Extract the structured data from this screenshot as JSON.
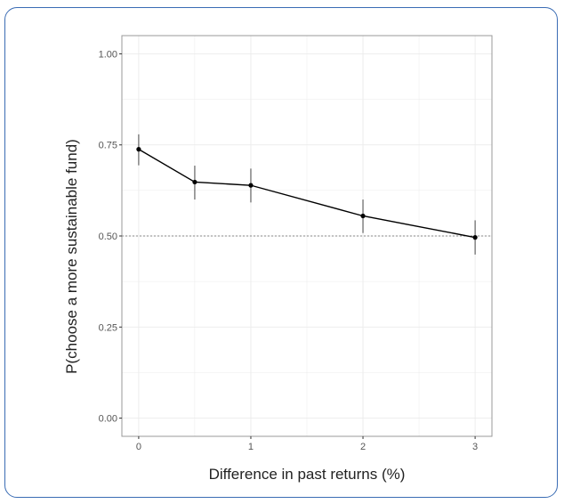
{
  "chart_data": {
    "type": "line",
    "title": "",
    "xlabel": "Difference in past returns (%)",
    "ylabel": "P(choose a more sustainable fund)",
    "xlim": [
      -0.15,
      3.15
    ],
    "ylim": [
      -0.05,
      1.05
    ],
    "x_ticks": [
      "0",
      "1",
      "2",
      "3"
    ],
    "y_ticks": [
      "0.00",
      "0.25",
      "0.50",
      "0.75",
      "1.00"
    ],
    "grid": true,
    "reference_line": {
      "y": 0.5,
      "style": "dotted"
    },
    "series": [
      {
        "x": [
          0,
          0.5,
          1,
          2,
          3
        ],
        "y": [
          0.738,
          0.648,
          0.639,
          0.555,
          0.496
        ],
        "error_low": [
          0.694,
          0.6,
          0.592,
          0.508,
          0.449
        ],
        "error_high": [
          0.779,
          0.693,
          0.685,
          0.6,
          0.543
        ],
        "color": "#000000"
      }
    ]
  },
  "colors": {
    "border": "#3a6cb4",
    "grid": "#ebebeb",
    "panel_border": "#999999"
  }
}
